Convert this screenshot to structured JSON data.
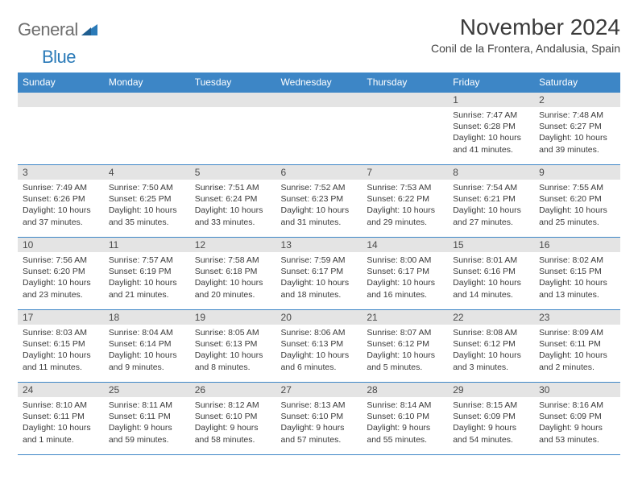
{
  "logo": {
    "textGeneral": "General",
    "textBlue": "Blue"
  },
  "header": {
    "title": "November 2024",
    "location": "Conil de la Frontera, Andalusia, Spain"
  },
  "colors": {
    "headerBg": "#3d86c6",
    "headerText": "#ffffff",
    "dayNumBg": "#e4e4e4",
    "borderColor": "#3d86c6",
    "bodyText": "#3a3a3a",
    "logoGray": "#6e6e6e",
    "logoBlue": "#2a7ab8"
  },
  "weekdays": [
    "Sunday",
    "Monday",
    "Tuesday",
    "Wednesday",
    "Thursday",
    "Friday",
    "Saturday"
  ],
  "weeks": [
    [
      null,
      null,
      null,
      null,
      null,
      {
        "n": "1",
        "sr": "Sunrise: 7:47 AM",
        "ss": "Sunset: 6:28 PM",
        "dl": "Daylight: 10 hours and 41 minutes."
      },
      {
        "n": "2",
        "sr": "Sunrise: 7:48 AM",
        "ss": "Sunset: 6:27 PM",
        "dl": "Daylight: 10 hours and 39 minutes."
      }
    ],
    [
      {
        "n": "3",
        "sr": "Sunrise: 7:49 AM",
        "ss": "Sunset: 6:26 PM",
        "dl": "Daylight: 10 hours and 37 minutes."
      },
      {
        "n": "4",
        "sr": "Sunrise: 7:50 AM",
        "ss": "Sunset: 6:25 PM",
        "dl": "Daylight: 10 hours and 35 minutes."
      },
      {
        "n": "5",
        "sr": "Sunrise: 7:51 AM",
        "ss": "Sunset: 6:24 PM",
        "dl": "Daylight: 10 hours and 33 minutes."
      },
      {
        "n": "6",
        "sr": "Sunrise: 7:52 AM",
        "ss": "Sunset: 6:23 PM",
        "dl": "Daylight: 10 hours and 31 minutes."
      },
      {
        "n": "7",
        "sr": "Sunrise: 7:53 AM",
        "ss": "Sunset: 6:22 PM",
        "dl": "Daylight: 10 hours and 29 minutes."
      },
      {
        "n": "8",
        "sr": "Sunrise: 7:54 AM",
        "ss": "Sunset: 6:21 PM",
        "dl": "Daylight: 10 hours and 27 minutes."
      },
      {
        "n": "9",
        "sr": "Sunrise: 7:55 AM",
        "ss": "Sunset: 6:20 PM",
        "dl": "Daylight: 10 hours and 25 minutes."
      }
    ],
    [
      {
        "n": "10",
        "sr": "Sunrise: 7:56 AM",
        "ss": "Sunset: 6:20 PM",
        "dl": "Daylight: 10 hours and 23 minutes."
      },
      {
        "n": "11",
        "sr": "Sunrise: 7:57 AM",
        "ss": "Sunset: 6:19 PM",
        "dl": "Daylight: 10 hours and 21 minutes."
      },
      {
        "n": "12",
        "sr": "Sunrise: 7:58 AM",
        "ss": "Sunset: 6:18 PM",
        "dl": "Daylight: 10 hours and 20 minutes."
      },
      {
        "n": "13",
        "sr": "Sunrise: 7:59 AM",
        "ss": "Sunset: 6:17 PM",
        "dl": "Daylight: 10 hours and 18 minutes."
      },
      {
        "n": "14",
        "sr": "Sunrise: 8:00 AM",
        "ss": "Sunset: 6:17 PM",
        "dl": "Daylight: 10 hours and 16 minutes."
      },
      {
        "n": "15",
        "sr": "Sunrise: 8:01 AM",
        "ss": "Sunset: 6:16 PM",
        "dl": "Daylight: 10 hours and 14 minutes."
      },
      {
        "n": "16",
        "sr": "Sunrise: 8:02 AM",
        "ss": "Sunset: 6:15 PM",
        "dl": "Daylight: 10 hours and 13 minutes."
      }
    ],
    [
      {
        "n": "17",
        "sr": "Sunrise: 8:03 AM",
        "ss": "Sunset: 6:15 PM",
        "dl": "Daylight: 10 hours and 11 minutes."
      },
      {
        "n": "18",
        "sr": "Sunrise: 8:04 AM",
        "ss": "Sunset: 6:14 PM",
        "dl": "Daylight: 10 hours and 9 minutes."
      },
      {
        "n": "19",
        "sr": "Sunrise: 8:05 AM",
        "ss": "Sunset: 6:13 PM",
        "dl": "Daylight: 10 hours and 8 minutes."
      },
      {
        "n": "20",
        "sr": "Sunrise: 8:06 AM",
        "ss": "Sunset: 6:13 PM",
        "dl": "Daylight: 10 hours and 6 minutes."
      },
      {
        "n": "21",
        "sr": "Sunrise: 8:07 AM",
        "ss": "Sunset: 6:12 PM",
        "dl": "Daylight: 10 hours and 5 minutes."
      },
      {
        "n": "22",
        "sr": "Sunrise: 8:08 AM",
        "ss": "Sunset: 6:12 PM",
        "dl": "Daylight: 10 hours and 3 minutes."
      },
      {
        "n": "23",
        "sr": "Sunrise: 8:09 AM",
        "ss": "Sunset: 6:11 PM",
        "dl": "Daylight: 10 hours and 2 minutes."
      }
    ],
    [
      {
        "n": "24",
        "sr": "Sunrise: 8:10 AM",
        "ss": "Sunset: 6:11 PM",
        "dl": "Daylight: 10 hours and 1 minute."
      },
      {
        "n": "25",
        "sr": "Sunrise: 8:11 AM",
        "ss": "Sunset: 6:11 PM",
        "dl": "Daylight: 9 hours and 59 minutes."
      },
      {
        "n": "26",
        "sr": "Sunrise: 8:12 AM",
        "ss": "Sunset: 6:10 PM",
        "dl": "Daylight: 9 hours and 58 minutes."
      },
      {
        "n": "27",
        "sr": "Sunrise: 8:13 AM",
        "ss": "Sunset: 6:10 PM",
        "dl": "Daylight: 9 hours and 57 minutes."
      },
      {
        "n": "28",
        "sr": "Sunrise: 8:14 AM",
        "ss": "Sunset: 6:10 PM",
        "dl": "Daylight: 9 hours and 55 minutes."
      },
      {
        "n": "29",
        "sr": "Sunrise: 8:15 AM",
        "ss": "Sunset: 6:09 PM",
        "dl": "Daylight: 9 hours and 54 minutes."
      },
      {
        "n": "30",
        "sr": "Sunrise: 8:16 AM",
        "ss": "Sunset: 6:09 PM",
        "dl": "Daylight: 9 hours and 53 minutes."
      }
    ]
  ]
}
